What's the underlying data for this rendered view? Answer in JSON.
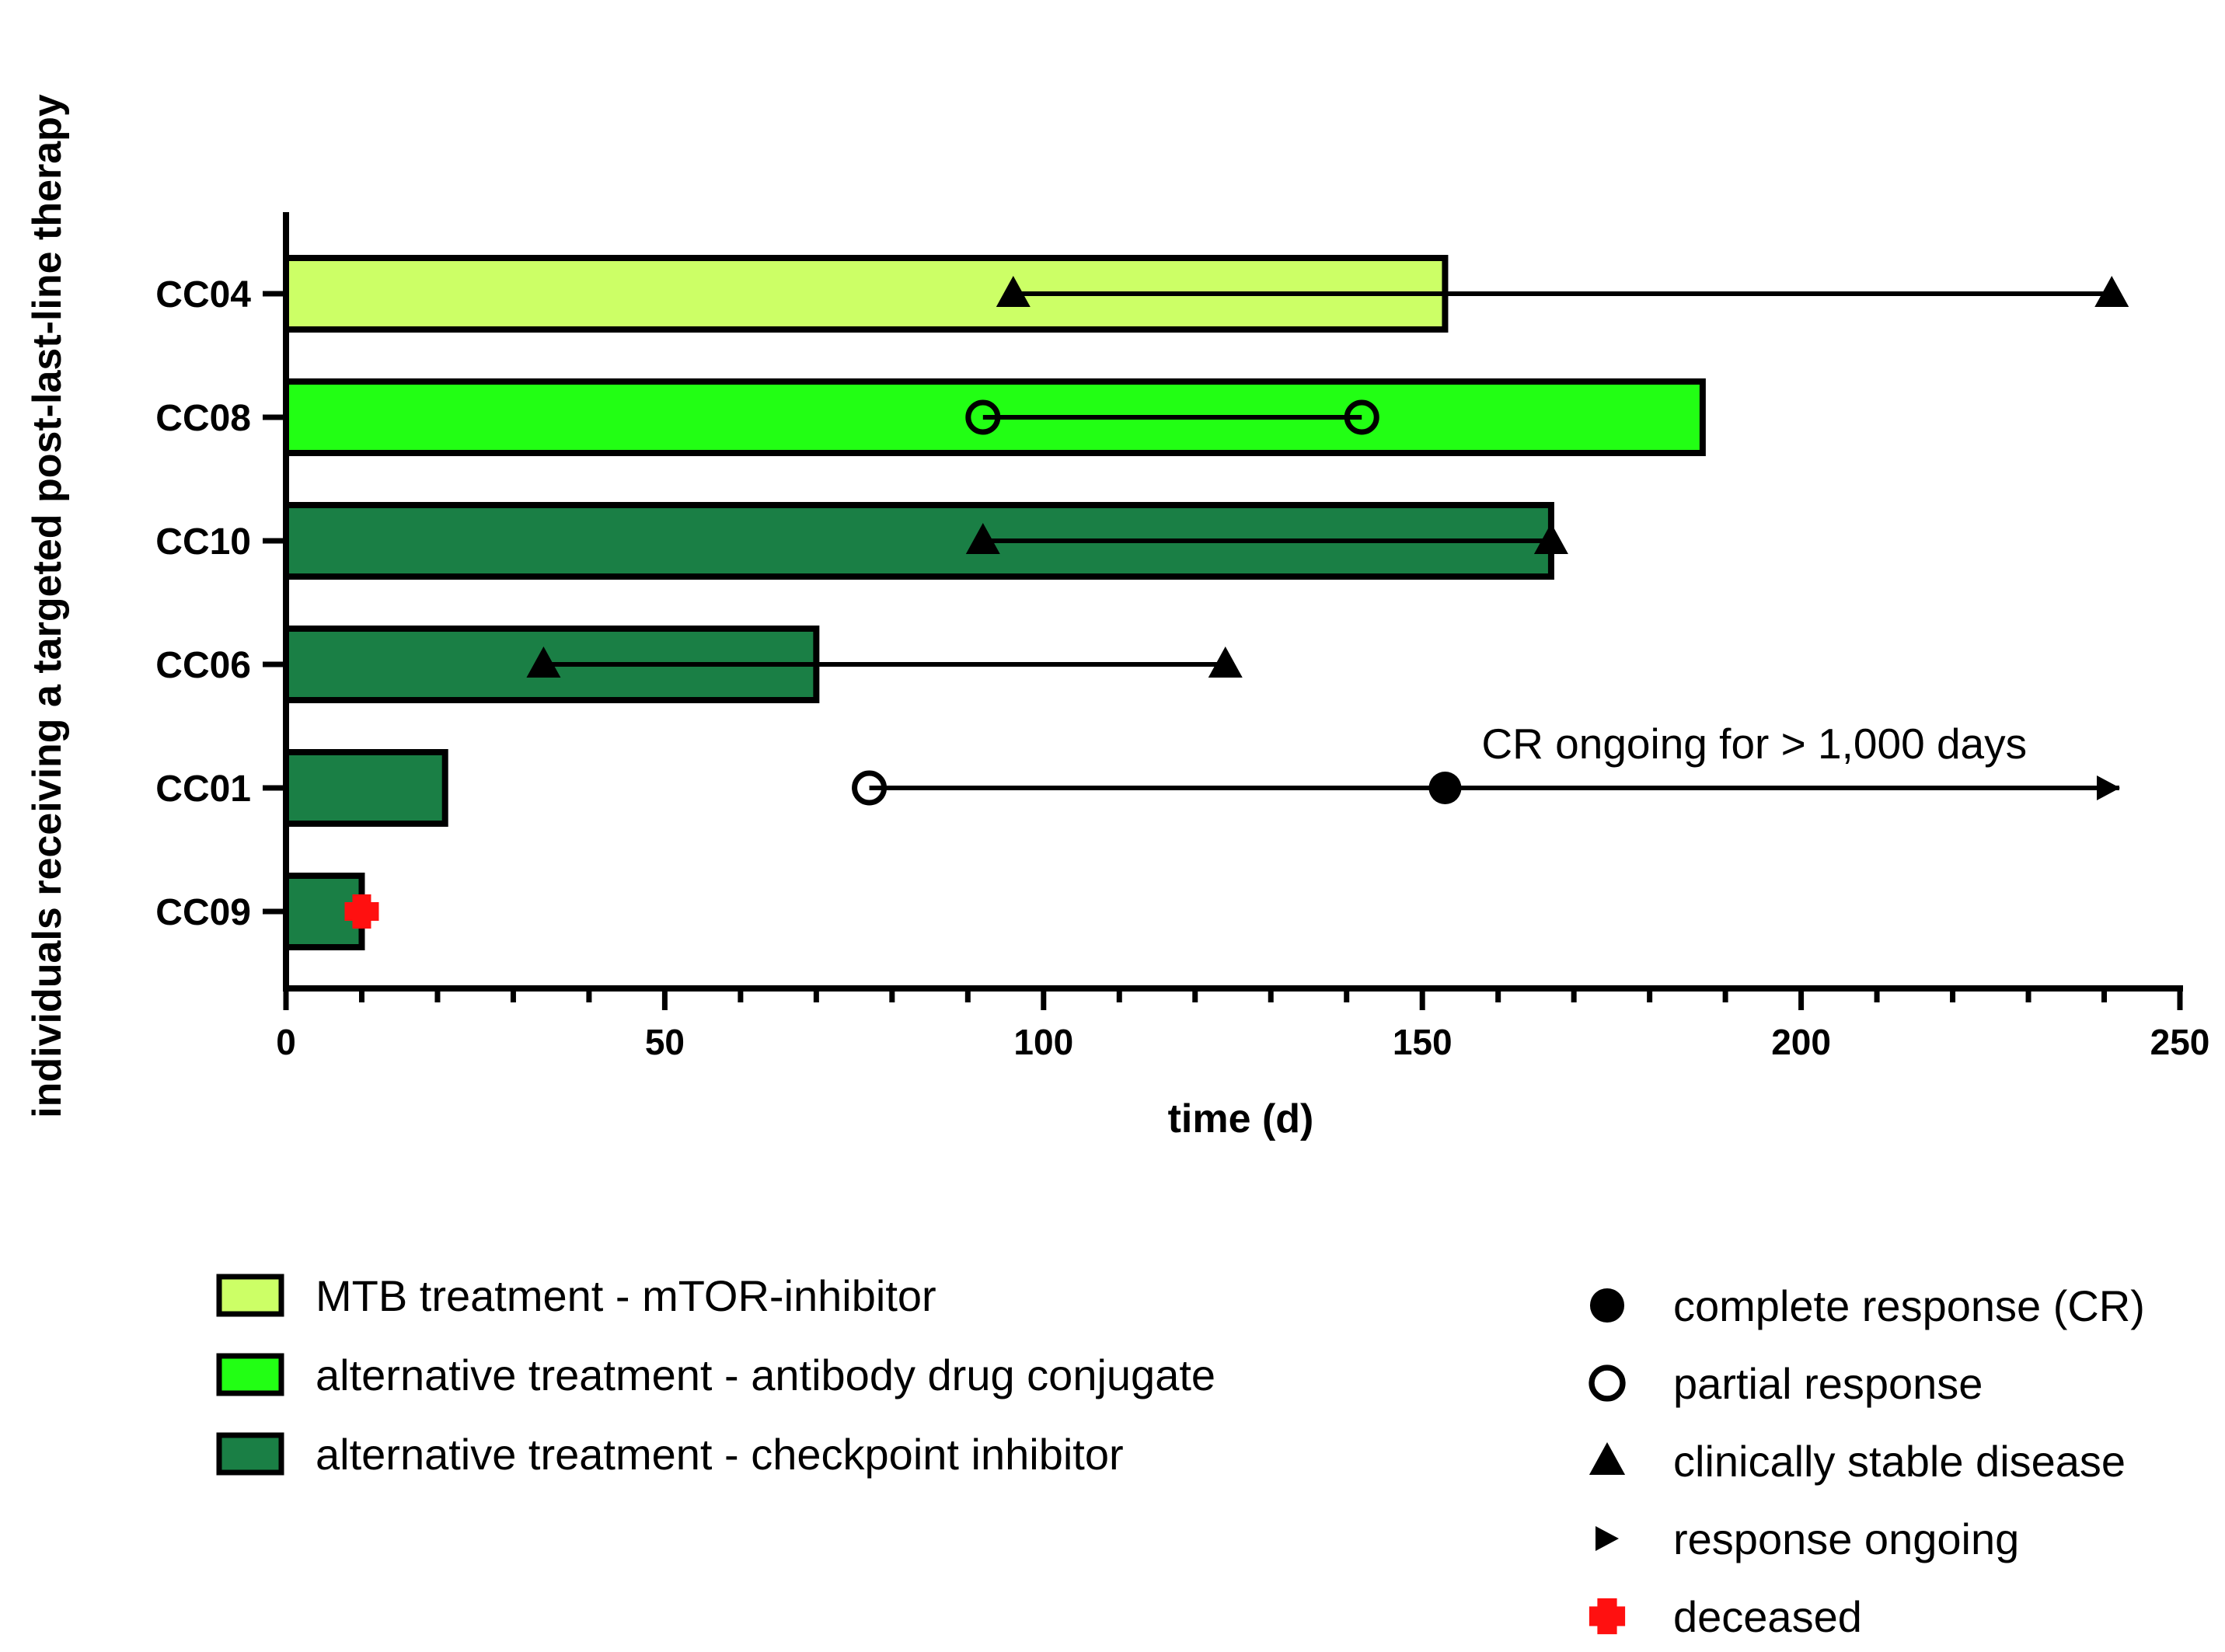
{
  "chart_data": {
    "type": "swimmer",
    "title": "",
    "xlabel": "time (d)",
    "ylabel": "individuals receiving a targeted post-last-line therapy",
    "xlim": [
      0,
      250
    ],
    "x_ticks": [
      0,
      50,
      100,
      150,
      200,
      250
    ],
    "x_minor_step": 10,
    "treatment_colors": {
      "mtor": "#ccff66",
      "adc": "#22ff14",
      "checkpoint": "#1a7f45"
    },
    "patients": [
      {
        "id": "CC04",
        "duration": 153,
        "treatment": "mtor"
      },
      {
        "id": "CC08",
        "duration": 187,
        "treatment": "adc"
      },
      {
        "id": "CC10",
        "duration": 167,
        "treatment": "checkpoint"
      },
      {
        "id": "CC06",
        "duration": 70,
        "treatment": "checkpoint"
      },
      {
        "id": "CC01",
        "duration": 21,
        "treatment": "checkpoint"
      },
      {
        "id": "CC09",
        "duration": 10,
        "treatment": "checkpoint"
      }
    ],
    "response_lines": [
      {
        "patient": "CC04",
        "start": 96,
        "end": 241
      },
      {
        "patient": "CC08",
        "start": 92,
        "end": 142
      },
      {
        "patient": "CC10",
        "start": 92,
        "end": 167
      },
      {
        "patient": "CC06",
        "start": 34,
        "end": 124
      },
      {
        "patient": "CC01",
        "start": 77,
        "end": 242
      }
    ],
    "markers": [
      {
        "patient": "CC04",
        "x": 96,
        "type": "stable"
      },
      {
        "patient": "CC04",
        "x": 241,
        "type": "stable"
      },
      {
        "patient": "CC08",
        "x": 92,
        "type": "partial"
      },
      {
        "patient": "CC08",
        "x": 142,
        "type": "partial"
      },
      {
        "patient": "CC10",
        "x": 92,
        "type": "stable"
      },
      {
        "patient": "CC10",
        "x": 167,
        "type": "stable"
      },
      {
        "patient": "CC06",
        "x": 34,
        "type": "stable"
      },
      {
        "patient": "CC06",
        "x": 124,
        "type": "stable"
      },
      {
        "patient": "CC01",
        "x": 77,
        "type": "partial"
      },
      {
        "patient": "CC01",
        "x": 153,
        "type": "complete"
      },
      {
        "patient": "CC01",
        "x": 242,
        "type": "ongoing"
      },
      {
        "patient": "CC09",
        "x": 10,
        "type": "deceased"
      }
    ],
    "annotations": [
      {
        "patient": "CC01",
        "x": 157,
        "text": "CR ongoing for > 1,000 days"
      }
    ],
    "legend_treatments": [
      {
        "key": "mtor",
        "label": "MTB treatment - mTOR-inhibitor"
      },
      {
        "key": "adc",
        "label": "alternative treatment - antibody drug conjugate"
      },
      {
        "key": "checkpoint",
        "label": "alternative treatment - checkpoint inhibitor"
      }
    ],
    "legend_markers": [
      {
        "type": "complete",
        "label": "complete response (CR)"
      },
      {
        "type": "partial",
        "label": "partial response"
      },
      {
        "type": "stable",
        "label": "clinically stable disease"
      },
      {
        "type": "ongoing",
        "label": "response ongoing"
      },
      {
        "type": "deceased",
        "label": "deceased"
      }
    ]
  }
}
